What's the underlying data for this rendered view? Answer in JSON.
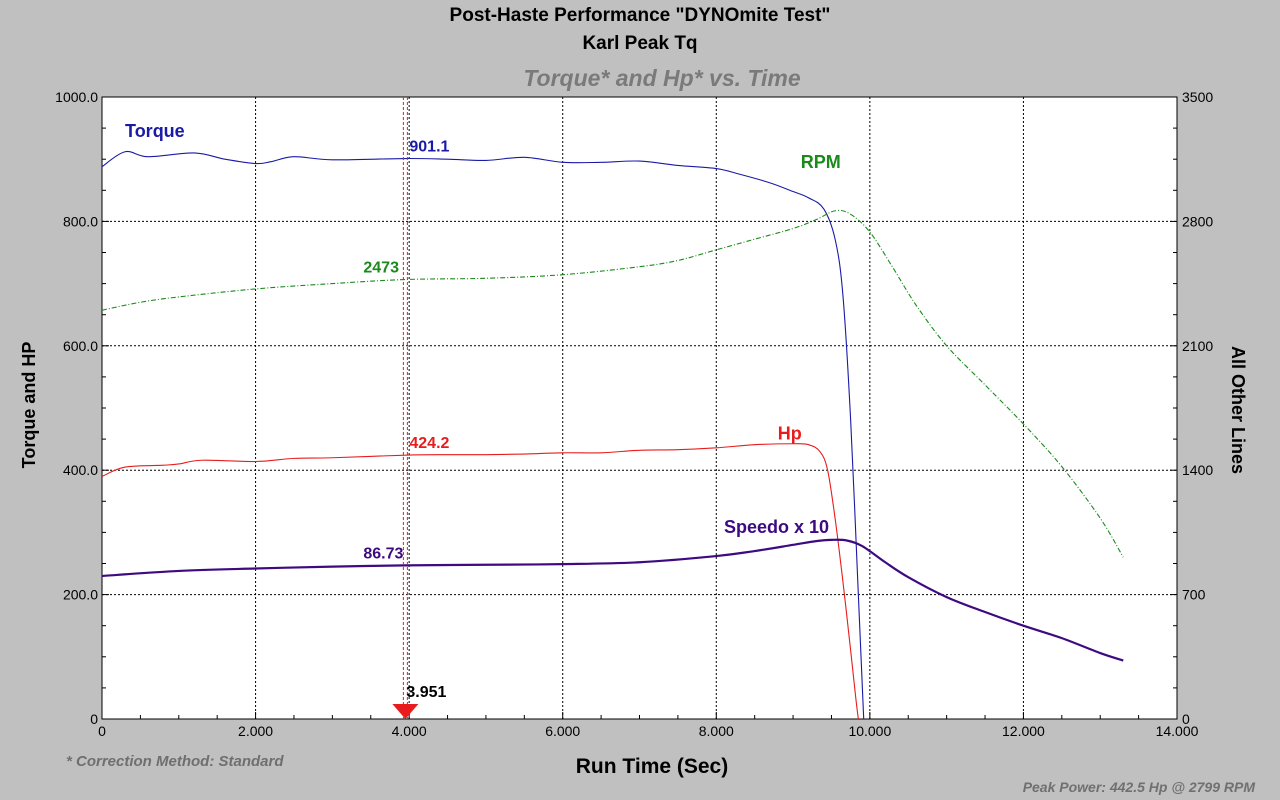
{
  "header": {
    "title_line1": "Post-Haste Performance \"DYNOmite Test\"",
    "title_line2": "Karl Peak Tq",
    "subtitle": "Torque* and Hp* vs. Time"
  },
  "footer": {
    "correction_note": "* Correction Method: Standard",
    "peak_note": "Peak Power: 442.5 Hp @ 2799 RPM"
  },
  "chart_data": {
    "type": "line",
    "title": "Torque* and Hp* vs. Time",
    "xlabel": "Run Time (Sec)",
    "ylabel": "Torque and HP",
    "ylabel_right": "All Other Lines",
    "xlim": [
      0,
      14
    ],
    "ylim": [
      0,
      1000
    ],
    "ylim_right": [
      0,
      3500
    ],
    "grid": true,
    "x_ticks": [
      "0",
      "2.000",
      "4.000",
      "6.000",
      "8.000",
      "10.000",
      "12.000",
      "14.000"
    ],
    "y_ticks": [
      "0",
      "200.0",
      "400.0",
      "600.0",
      "800.0",
      "1000.0"
    ],
    "y_ticks_right": [
      "0",
      "700",
      "1400",
      "2100",
      "2800",
      "3500"
    ],
    "cursor": {
      "x": 3.951,
      "label": "3.951"
    },
    "series": [
      {
        "name": "Torque",
        "axis": "left",
        "color": "#1a1aa8",
        "cursor_value": "901.1",
        "points": [
          [
            0,
            888
          ],
          [
            0.3,
            912
          ],
          [
            0.6,
            904
          ],
          [
            1.2,
            910
          ],
          [
            1.6,
            900
          ],
          [
            2.0,
            893
          ],
          [
            2.2,
            896
          ],
          [
            2.5,
            904
          ],
          [
            3.0,
            899
          ],
          [
            3.951,
            901.1
          ],
          [
            4.5,
            900
          ],
          [
            5.0,
            898
          ],
          [
            5.5,
            903
          ],
          [
            6.0,
            895
          ],
          [
            6.5,
            895
          ],
          [
            7.0,
            897
          ],
          [
            7.5,
            890
          ],
          [
            8.0,
            885
          ],
          [
            8.3,
            876
          ],
          [
            8.7,
            862
          ],
          [
            9.0,
            848
          ],
          [
            9.2,
            838
          ],
          [
            9.4,
            820
          ],
          [
            9.55,
            770
          ],
          [
            9.65,
            680
          ],
          [
            9.75,
            480
          ],
          [
            9.85,
            200
          ],
          [
            9.92,
            0
          ]
        ]
      },
      {
        "name": "Hp",
        "axis": "left",
        "color": "#e81c1c",
        "cursor_value": "424.2",
        "points": [
          [
            0,
            390
          ],
          [
            0.3,
            405
          ],
          [
            0.8,
            408
          ],
          [
            1.0,
            410
          ],
          [
            1.3,
            416
          ],
          [
            2.0,
            414
          ],
          [
            2.5,
            419
          ],
          [
            3.0,
            420
          ],
          [
            3.951,
            424.2
          ],
          [
            4.5,
            425
          ],
          [
            5.0,
            425
          ],
          [
            5.5,
            426
          ],
          [
            6.0,
            428
          ],
          [
            6.5,
            428
          ],
          [
            7.0,
            432
          ],
          [
            7.5,
            433
          ],
          [
            8.0,
            436
          ],
          [
            8.5,
            441
          ],
          [
            9.0,
            442.5
          ],
          [
            9.2,
            441
          ],
          [
            9.35,
            430
          ],
          [
            9.45,
            400
          ],
          [
            9.55,
            320
          ],
          [
            9.65,
            220
          ],
          [
            9.75,
            110
          ],
          [
            9.82,
            30
          ],
          [
            9.85,
            0
          ]
        ]
      },
      {
        "name": "RPM",
        "axis": "right",
        "color": "#1b8a1b",
        "dashed": true,
        "cursor_value": "2473",
        "points": [
          [
            0,
            2300
          ],
          [
            0.5,
            2345
          ],
          [
            1.0,
            2375
          ],
          [
            2.0,
            2420
          ],
          [
            3.0,
            2450
          ],
          [
            3.951,
            2473
          ],
          [
            5.0,
            2480
          ],
          [
            6.0,
            2500
          ],
          [
            7.0,
            2545
          ],
          [
            7.5,
            2580
          ],
          [
            8.0,
            2640
          ],
          [
            8.5,
            2700
          ],
          [
            9.0,
            2760
          ],
          [
            9.3,
            2810
          ],
          [
            9.55,
            2860
          ],
          [
            9.75,
            2840
          ],
          [
            10.0,
            2740
          ],
          [
            10.3,
            2540
          ],
          [
            10.6,
            2330
          ],
          [
            11.0,
            2100
          ],
          [
            11.5,
            1880
          ],
          [
            12.0,
            1660
          ],
          [
            12.5,
            1420
          ],
          [
            13.0,
            1130
          ],
          [
            13.3,
            910
          ]
        ]
      },
      {
        "name": "Speedo x 10",
        "axis": "left",
        "color": "#3d0a80",
        "thick": true,
        "cursor_value": "86.73",
        "points": [
          [
            0,
            230
          ],
          [
            1.0,
            238
          ],
          [
            2.0,
            242
          ],
          [
            3.0,
            245
          ],
          [
            3.951,
            247
          ],
          [
            5.0,
            248
          ],
          [
            6.0,
            249
          ],
          [
            7.0,
            252
          ],
          [
            8.0,
            262
          ],
          [
            8.5,
            270
          ],
          [
            9.0,
            280
          ],
          [
            9.3,
            286
          ],
          [
            9.5,
            288
          ],
          [
            9.7,
            287
          ],
          [
            9.9,
            278
          ],
          [
            10.2,
            252
          ],
          [
            10.5,
            228
          ],
          [
            11.0,
            196
          ],
          [
            11.5,
            172
          ],
          [
            12.0,
            150
          ],
          [
            12.5,
            130
          ],
          [
            13.0,
            106
          ],
          [
            13.3,
            94
          ]
        ]
      }
    ]
  }
}
